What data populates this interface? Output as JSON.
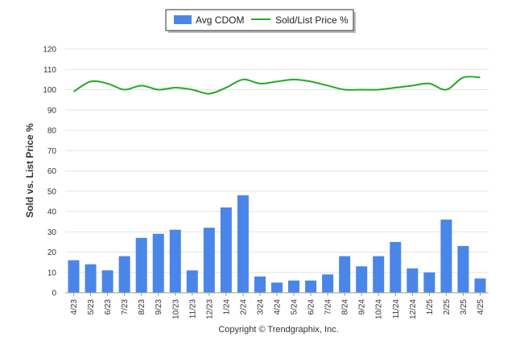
{
  "chart_data": {
    "type": "bar",
    "categories": [
      "4/23",
      "5/23",
      "6/23",
      "7/23",
      "8/23",
      "9/23",
      "10/23",
      "11/23",
      "12/23",
      "1/24",
      "2/24",
      "3/24",
      "4/24",
      "5/24",
      "6/24",
      "7/24",
      "8/24",
      "9/24",
      "10/24",
      "11/24",
      "12/24",
      "1/25",
      "2/25",
      "3/25",
      "4/25"
    ],
    "series": [
      {
        "name": "Avg CDOM",
        "type": "bar",
        "color": "#4a86e8",
        "values": [
          16,
          14,
          11,
          18,
          27,
          29,
          31,
          11,
          32,
          42,
          48,
          8,
          5,
          6,
          6,
          9,
          18,
          13,
          18,
          25,
          12,
          10,
          36,
          23,
          7
        ]
      },
      {
        "name": "Sold/List Price %",
        "type": "line",
        "color": "#22aa22",
        "values": [
          99,
          104,
          103,
          100,
          102,
          100,
          101,
          100,
          98,
          101,
          105,
          103,
          104,
          105,
          104,
          102,
          100,
          100,
          100,
          101,
          102,
          103,
          100,
          106,
          106
        ]
      }
    ],
    "ylabel": "Sold vs. List Price %",
    "ylim": [
      0,
      120
    ],
    "yticks": [
      0,
      10,
      20,
      30,
      40,
      50,
      60,
      70,
      80,
      90,
      100,
      110,
      120
    ],
    "grid": true,
    "legend_position": "top-center"
  },
  "credit": "Copyright © Trendgraphix, Inc."
}
